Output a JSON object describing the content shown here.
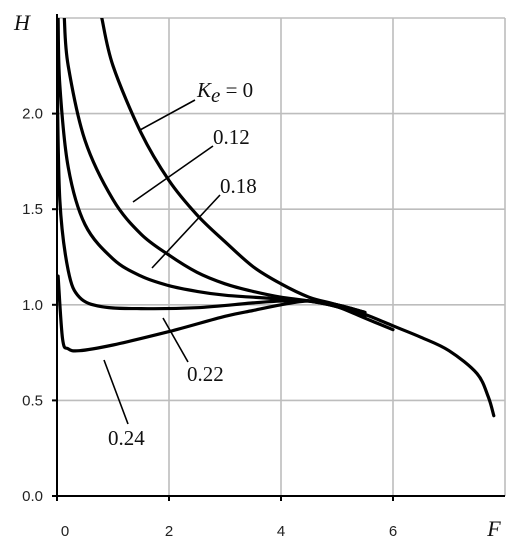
{
  "chart_data": {
    "type": "line",
    "title": "",
    "xlabel": "F",
    "ylabel": "H",
    "xlim": [
      0,
      8
    ],
    "ylim": [
      0,
      2.5
    ],
    "x_ticks": [
      0,
      2,
      4,
      6
    ],
    "x_tick_labels": [
      "0",
      "2",
      "4",
      "6"
    ],
    "y_ticks": [
      0,
      0.5,
      1.0,
      1.5,
      2.0
    ],
    "y_tick_labels": [
      "0.0",
      "0.5",
      "1.0",
      "1.5",
      "2.0"
    ],
    "grid": true,
    "legend": "none",
    "series": [
      {
        "name": "Ke = 0",
        "label_parts": {
          "symbol": "K",
          "subscript": "e",
          "suffix": " = 0"
        },
        "points": [
          [
            0.8,
            2.5
          ],
          [
            1.0,
            2.25
          ],
          [
            1.5,
            1.9
          ],
          [
            2.0,
            1.65
          ],
          [
            2.5,
            1.47
          ],
          [
            3.0,
            1.33
          ],
          [
            3.5,
            1.2
          ],
          [
            4.0,
            1.11
          ],
          [
            4.5,
            1.04
          ],
          [
            5.0,
            1.0
          ],
          [
            5.5,
            0.95
          ],
          [
            6.0,
            0.89
          ],
          [
            6.5,
            0.83
          ],
          [
            7.0,
            0.76
          ],
          [
            7.5,
            0.64
          ],
          [
            7.7,
            0.52
          ],
          [
            7.8,
            0.42
          ]
        ]
      },
      {
        "name": "0.12",
        "points": [
          [
            0.13,
            2.5
          ],
          [
            0.2,
            2.25
          ],
          [
            0.5,
            1.86
          ],
          [
            1.0,
            1.55
          ],
          [
            1.5,
            1.37
          ],
          [
            2.0,
            1.26
          ],
          [
            2.5,
            1.17
          ],
          [
            3.0,
            1.11
          ],
          [
            3.5,
            1.07
          ],
          [
            4.0,
            1.04
          ],
          [
            4.5,
            1.02
          ],
          [
            5.0,
            0.99
          ],
          [
            5.5,
            0.93
          ],
          [
            6.0,
            0.87
          ]
        ]
      },
      {
        "name": "0.18",
        "points": [
          [
            0.02,
            2.5
          ],
          [
            0.05,
            2.15
          ],
          [
            0.2,
            1.72
          ],
          [
            0.5,
            1.42
          ],
          [
            1.0,
            1.24
          ],
          [
            1.5,
            1.15
          ],
          [
            2.0,
            1.1
          ],
          [
            2.5,
            1.07
          ],
          [
            3.0,
            1.05
          ],
          [
            3.5,
            1.04
          ],
          [
            4.0,
            1.03
          ],
          [
            4.5,
            1.02
          ],
          [
            5.0,
            0.99
          ],
          [
            5.5,
            0.94
          ]
        ]
      },
      {
        "name": "0.22",
        "points": [
          [
            0.0,
            2.25
          ],
          [
            0.05,
            1.55
          ],
          [
            0.2,
            1.18
          ],
          [
            0.4,
            1.04
          ],
          [
            0.8,
            0.99
          ],
          [
            1.5,
            0.98
          ],
          [
            2.5,
            0.985
          ],
          [
            3.5,
            1.01
          ],
          [
            4.0,
            1.02
          ],
          [
            4.5,
            1.02
          ],
          [
            5.0,
            1.0
          ],
          [
            5.5,
            0.96
          ]
        ]
      },
      {
        "name": "0.24",
        "points": [
          [
            0.02,
            1.15
          ],
          [
            0.1,
            0.82
          ],
          [
            0.2,
            0.77
          ],
          [
            0.4,
            0.76
          ],
          [
            1.0,
            0.79
          ],
          [
            2.0,
            0.86
          ],
          [
            3.0,
            0.94
          ],
          [
            3.5,
            0.97
          ],
          [
            4.0,
            1.0
          ],
          [
            4.5,
            1.02
          ],
          [
            5.0,
            1.0
          ],
          [
            5.5,
            0.96
          ]
        ]
      }
    ]
  }
}
